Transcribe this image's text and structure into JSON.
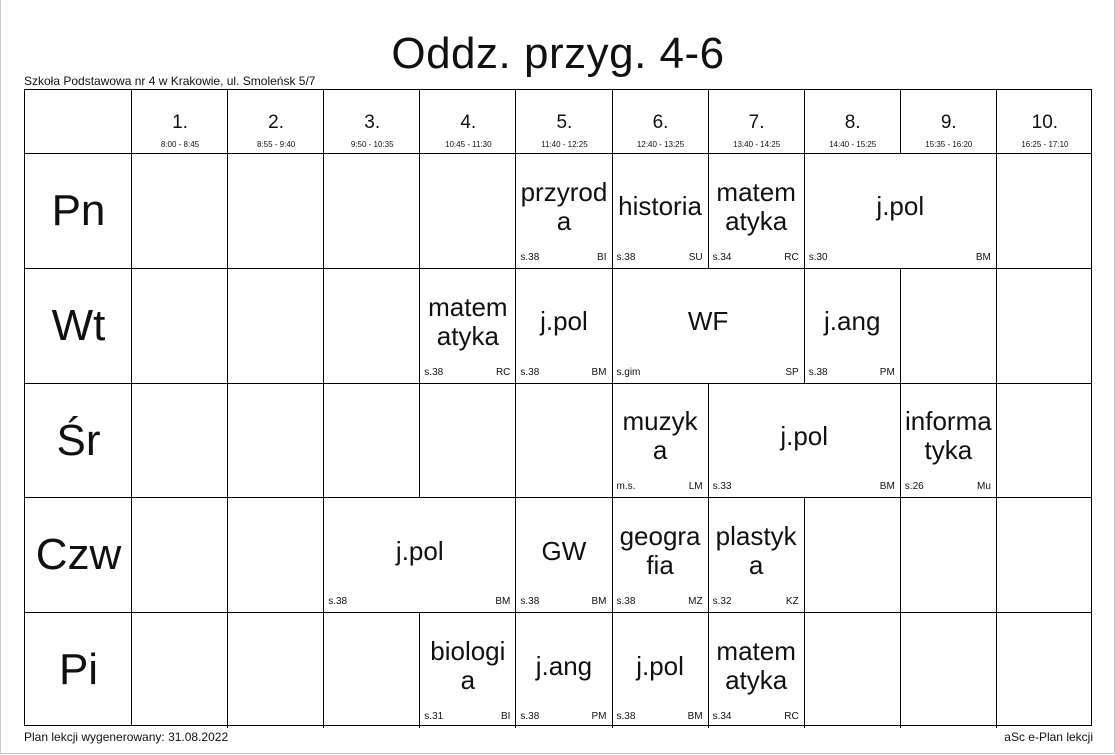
{
  "title": "Oddz. przyg. 4-6",
  "school": "Szkoła Podstawowa nr 4 w Krakowie, ul. Smoleńsk 5/7",
  "periods": [
    {
      "num": "1.",
      "time": "8:00 - 8:45"
    },
    {
      "num": "2.",
      "time": "8:55 - 9:40"
    },
    {
      "num": "3.",
      "time": "9:50 - 10:35"
    },
    {
      "num": "4.",
      "time": "10:45 - 11:30"
    },
    {
      "num": "5.",
      "time": "11:40 - 12:25"
    },
    {
      "num": "6.",
      "time": "12:40 - 13:25"
    },
    {
      "num": "7.",
      "time": "13:40 - 14:25"
    },
    {
      "num": "8.",
      "time": "14:40 - 15:25"
    },
    {
      "num": "9.",
      "time": "15:35 - 16:20"
    },
    {
      "num": "10.",
      "time": "16:25 - 17:10"
    }
  ],
  "days": [
    "Pn",
    "Wt",
    "Śr",
    "Czw",
    "Pi"
  ],
  "lessons": [
    {
      "day": 0,
      "start": 5,
      "span": 1,
      "subject": "przyroda",
      "room": "s.38",
      "teacher": "BI"
    },
    {
      "day": 0,
      "start": 6,
      "span": 1,
      "subject": "historia",
      "room": "s.38",
      "teacher": "SU"
    },
    {
      "day": 0,
      "start": 7,
      "span": 1,
      "subject": "matematyka",
      "room": "s.34",
      "teacher": "RC"
    },
    {
      "day": 0,
      "start": 8,
      "span": 2,
      "subject": "j.pol",
      "room": "s.30",
      "teacher": "BM"
    },
    {
      "day": 1,
      "start": 4,
      "span": 1,
      "subject": "matematyka",
      "room": "s.38",
      "teacher": "RC"
    },
    {
      "day": 1,
      "start": 5,
      "span": 1,
      "subject": "j.pol",
      "room": "s.38",
      "teacher": "BM"
    },
    {
      "day": 1,
      "start": 6,
      "span": 2,
      "subject": "WF",
      "room": "s.gim",
      "teacher": "SP"
    },
    {
      "day": 1,
      "start": 8,
      "span": 1,
      "subject": "j.ang",
      "room": "s.38",
      "teacher": "PM"
    },
    {
      "day": 2,
      "start": 6,
      "span": 1,
      "subject": "muzyka",
      "room": "m.s.",
      "teacher": "LM"
    },
    {
      "day": 2,
      "start": 7,
      "span": 2,
      "subject": "j.pol",
      "room": "s.33",
      "teacher": "BM"
    },
    {
      "day": 2,
      "start": 9,
      "span": 1,
      "subject": "informatyka",
      "room": "s.26",
      "teacher": "Mu"
    },
    {
      "day": 3,
      "start": 3,
      "span": 2,
      "subject": "j.pol",
      "room": "s.38",
      "teacher": "BM"
    },
    {
      "day": 3,
      "start": 5,
      "span": 1,
      "subject": "GW",
      "room": "s.38",
      "teacher": "BM"
    },
    {
      "day": 3,
      "start": 6,
      "span": 1,
      "subject": "geografia",
      "room": "s.38",
      "teacher": "MZ"
    },
    {
      "day": 3,
      "start": 7,
      "span": 1,
      "subject": "plastyka",
      "room": "s.32",
      "teacher": "KZ"
    },
    {
      "day": 4,
      "start": 4,
      "span": 1,
      "subject": "biologia",
      "room": "s.31",
      "teacher": "BI"
    },
    {
      "day": 4,
      "start": 5,
      "span": 1,
      "subject": "j.ang",
      "room": "s.38",
      "teacher": "PM"
    },
    {
      "day": 4,
      "start": 6,
      "span": 1,
      "subject": "j.pol",
      "room": "s.38",
      "teacher": "BM"
    },
    {
      "day": 4,
      "start": 7,
      "span": 1,
      "subject": "matematyka",
      "room": "s.34",
      "teacher": "RC"
    }
  ],
  "footer": {
    "generated": "Plan lekcji wygenerowany: 31.08.2022",
    "brand": "aSc e-Plan lekcji"
  }
}
